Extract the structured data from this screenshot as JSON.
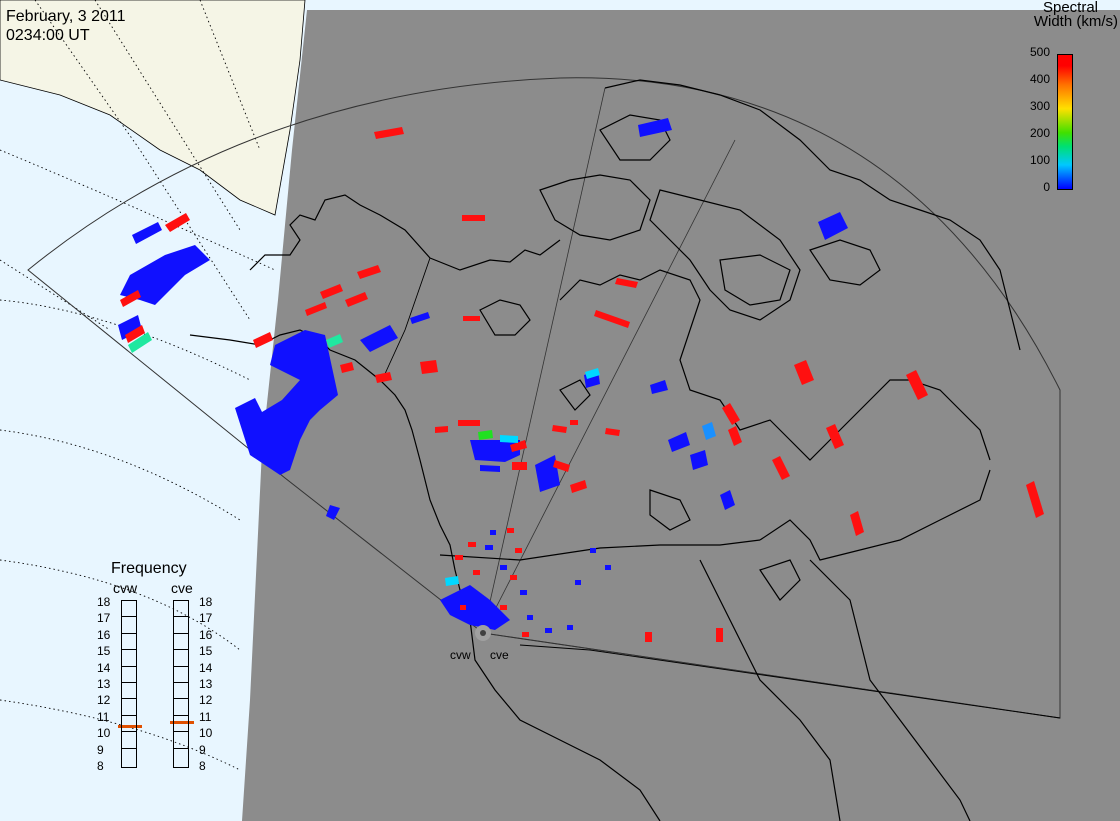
{
  "header": {
    "date": "February, 3 2011",
    "time": "0234:00 UT"
  },
  "colorbar": {
    "title_line1": "Spectral",
    "title_line2": "Width (km/s)",
    "ticks": [
      "500",
      "400",
      "300",
      "200",
      "100",
      "0"
    ],
    "range": [
      0,
      500
    ],
    "colors": [
      "#0000ff",
      "#00c8ff",
      "#00e070",
      "#40e000",
      "#ffe000",
      "#ff7000",
      "#ff0000"
    ]
  },
  "frequency": {
    "title": "Frequency",
    "radars": [
      {
        "name": "cvw",
        "selected_mhz": 10.6
      },
      {
        "name": "cve",
        "selected_mhz": 10.9
      }
    ],
    "scale": [
      "18",
      "17",
      "16",
      "15",
      "14",
      "13",
      "12",
      "11",
      "10",
      "9",
      "8"
    ]
  },
  "radar_sites": {
    "cvw": "cvw",
    "cve": "cve"
  },
  "colors": {
    "ocean": "#e8f6ff",
    "land_day": "#f5f5e6",
    "night": "#8c8c8c",
    "coast": "#000000",
    "low_width": "#1010ff",
    "high_width": "#ff1010",
    "marker": "#e05000"
  }
}
